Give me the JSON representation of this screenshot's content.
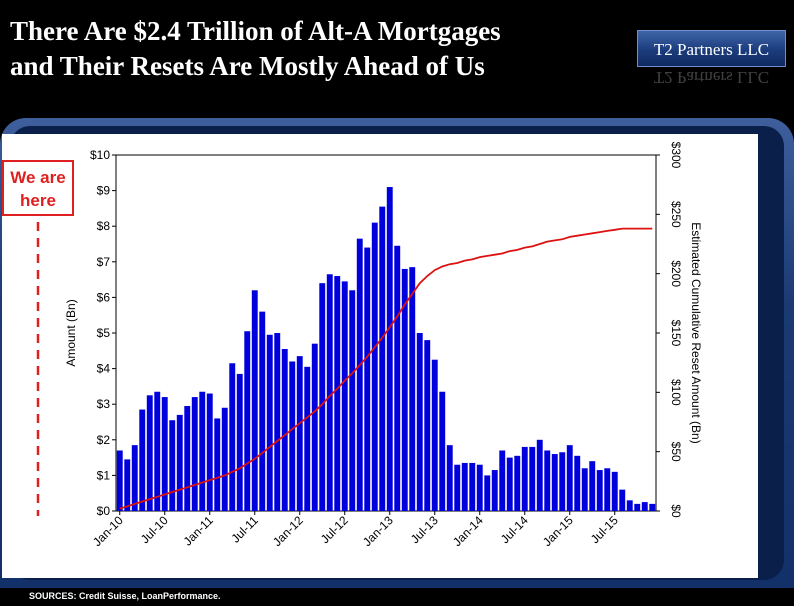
{
  "header": {
    "title_line1": "There Are $2.4 Trillion of Alt-A Mortgages",
    "title_line2": "and Their Resets Are Mostly Ahead of Us",
    "brand": "T2 Partners LLC"
  },
  "annotation": {
    "line1": "We are",
    "line2": "here"
  },
  "sources": "SOURCES: Credit Suisse, LoanPerformance.",
  "colors": {
    "bars": "#0000dd",
    "line": "#dd1111",
    "annotation": "#e02020"
  },
  "chart_data": {
    "type": "bar",
    "y_left": {
      "label": "Amount (Bn)",
      "min": 0,
      "max": 10,
      "ticks": [
        "$0",
        "$1",
        "$2",
        "$3",
        "$4",
        "$5",
        "$6",
        "$7",
        "$8",
        "$9",
        "$10"
      ]
    },
    "y_right": {
      "label": "Estimated Cumulative Reset Amount (Bn)",
      "min": 0,
      "max": 300,
      "ticks": [
        "$0",
        "$50",
        "$100",
        "$150",
        "$200",
        "$250",
        "$300"
      ]
    },
    "x_tick_labels": [
      "Jan-10",
      "Jul-10",
      "Jan-11",
      "Jul-11",
      "Jan-12",
      "Jul-12",
      "Jan-13",
      "Jul-13",
      "Jan-14",
      "Jul-14",
      "Jan-15",
      "Jul-15"
    ],
    "series": [
      {
        "type": "bar",
        "axis": "left",
        "values": [
          1.7,
          1.45,
          1.85,
          2.85,
          3.25,
          3.35,
          3.2,
          2.55,
          2.7,
          2.95,
          3.2,
          3.35,
          3.3,
          2.6,
          2.9,
          4.15,
          3.85,
          5.05,
          6.2,
          5.6,
          4.95,
          5.0,
          4.55,
          4.2,
          4.35,
          4.05,
          4.7,
          6.4,
          6.65,
          6.6,
          6.45,
          6.2,
          7.65,
          7.4,
          8.1,
          8.55,
          9.1,
          7.45,
          6.8,
          6.85,
          5.0,
          4.8,
          4.25,
          3.35,
          1.85,
          1.3,
          1.35,
          1.35,
          1.3,
          1.0,
          1.15,
          1.7,
          1.5,
          1.55,
          1.8,
          1.8,
          2.0,
          1.7,
          1.6,
          1.65,
          1.85,
          1.55,
          1.2,
          1.4,
          1.15,
          1.2,
          1.1,
          0.6,
          0.3,
          0.2,
          0.25,
          0.2
        ]
      },
      {
        "type": "line",
        "axis": "right",
        "values": [
          2,
          4,
          6,
          8,
          10,
          12,
          14,
          16,
          18,
          20,
          22,
          24,
          26,
          28,
          30,
          33,
          36,
          40,
          44,
          49,
          54,
          59,
          64,
          69,
          74,
          79,
          84,
          90,
          97,
          103,
          110,
          116,
          123,
          130,
          138,
          146,
          155,
          164,
          174,
          183,
          192,
          198,
          203,
          206,
          208,
          209,
          211,
          212,
          214,
          215,
          216,
          217,
          219,
          220,
          222,
          223,
          225,
          227,
          228,
          229,
          231,
          232,
          233,
          234,
          235,
          236,
          237,
          238,
          238,
          238,
          238,
          238
        ]
      }
    ]
  }
}
